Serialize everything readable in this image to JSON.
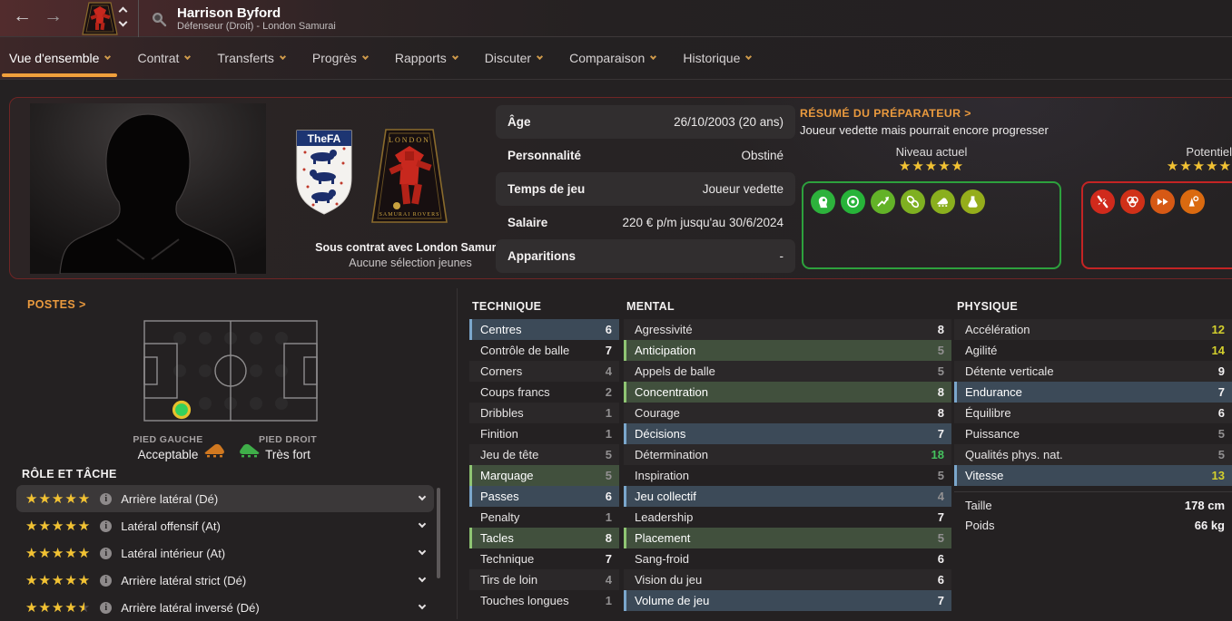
{
  "header": {
    "back_glyph": "←",
    "forward_glyph": "→",
    "player_name": "Harrison Byford",
    "player_role": "Défenseur (Droit) - London Samurai"
  },
  "nav": {
    "tabs": [
      "Vue d'ensemble",
      "Contrat",
      "Transferts",
      "Progrès",
      "Rapports",
      "Discuter",
      "Comparaison",
      "Historique"
    ],
    "active_tab": "Vue d'ensemble"
  },
  "overview": {
    "fa_badge_text": "TheFA",
    "club_badge_top": "LONDON",
    "club_badge_bottom": "SAMURAI ROVERS",
    "contract_bold": "Sous contrat avec London Samurai",
    "contract_sub": "Aucune sélection jeunes",
    "info": [
      {
        "label": "Âge",
        "value": "26/10/2003 (20 ans)"
      },
      {
        "label": "Personnalité",
        "value": "Obstiné"
      },
      {
        "label": "Temps de jeu",
        "value": "Joueur vedette"
      },
      {
        "label": "Salaire",
        "value": "220 € p/m jusqu'au 30/6/2024"
      },
      {
        "label": "Apparitions",
        "value": "-"
      }
    ],
    "scout": {
      "title": "RÉSUMÉ DU PRÉPARATEUR >",
      "summary": "Joueur vedette mais pourrait encore progresser",
      "current_label": "Niveau actuel",
      "current_stars": 5,
      "potential_label": "Potentiel",
      "potential_stars": 5,
      "strengths_box_color": "#2da13d",
      "weaknesses_box_color": "#c42424",
      "strengths": [
        {
          "name": "head-icon",
          "color": "#2db23c"
        },
        {
          "name": "target-icon",
          "color": "#27b339"
        },
        {
          "name": "growth-arrow-icon",
          "color": "#63b228"
        },
        {
          "name": "chain-icon",
          "color": "#7fb021"
        },
        {
          "name": "boot-icon",
          "color": "#8aaf1e"
        },
        {
          "name": "flask-icon",
          "color": "#95ad1b"
        }
      ],
      "weaknesses": [
        {
          "name": "injury-icon",
          "color": "#d02a1c"
        },
        {
          "name": "rings-icon",
          "color": "#d03018"
        },
        {
          "name": "double-arrow-icon",
          "color": "#d65915"
        },
        {
          "name": "cone-icon",
          "color": "#da6a10"
        }
      ]
    }
  },
  "positions": {
    "title": "POSTES >",
    "left_foot_label": "PIED GAUCHE",
    "left_foot_value": "Acceptable",
    "right_foot_label": "PIED DROIT",
    "right_foot_value": "Très fort",
    "highlight_color": "#35d15c"
  },
  "roles": {
    "title": "RÔLE ET TÂCHE",
    "info_glyph": "i",
    "items": [
      {
        "stars": 5,
        "label": "Arrière latéral (Dé)",
        "selected": true
      },
      {
        "stars": 5,
        "label": "Latéral offensif (At)",
        "selected": false
      },
      {
        "stars": 5,
        "label": "Latéral intérieur (At)",
        "selected": false
      },
      {
        "stars": 5,
        "label": "Arrière latéral strict (Dé)",
        "selected": false
      },
      {
        "stars": 4.5,
        "label": "Arrière latéral inversé (Dé)",
        "selected": false
      }
    ]
  },
  "attributes": {
    "technique": {
      "title": "TECHNIQUE",
      "rows": [
        {
          "label": "Centres",
          "value": 6
        },
        {
          "label": "Contrôle de balle",
          "value": 7
        },
        {
          "label": "Corners",
          "value": 4
        },
        {
          "label": "Coups francs",
          "value": 2
        },
        {
          "label": "Dribbles",
          "value": 1
        },
        {
          "label": "Finition",
          "value": 1
        },
        {
          "label": "Jeu de tête",
          "value": 5
        },
        {
          "label": "Marquage",
          "value": 5
        },
        {
          "label": "Passes",
          "value": 6
        },
        {
          "label": "Penalty",
          "value": 1
        },
        {
          "label": "Tacles",
          "value": 8
        },
        {
          "label": "Technique",
          "value": 7
        },
        {
          "label": "Tirs de loin",
          "value": 4
        },
        {
          "label": "Touches longues",
          "value": 1
        }
      ]
    },
    "mental": {
      "title": "MENTAL",
      "rows": [
        {
          "label": "Agressivité",
          "value": 8
        },
        {
          "label": "Anticipation",
          "value": 5
        },
        {
          "label": "Appels de balle",
          "value": 5
        },
        {
          "label": "Concentration",
          "value": 8
        },
        {
          "label": "Courage",
          "value": 8
        },
        {
          "label": "Décisions",
          "value": 7
        },
        {
          "label": "Détermination",
          "value": 18
        },
        {
          "label": "Inspiration",
          "value": 5
        },
        {
          "label": "Jeu collectif",
          "value": 4
        },
        {
          "label": "Leadership",
          "value": 7
        },
        {
          "label": "Placement",
          "value": 5
        },
        {
          "label": "Sang-froid",
          "value": 6
        },
        {
          "label": "Vision du jeu",
          "value": 6
        },
        {
          "label": "Volume de jeu",
          "value": 7
        }
      ]
    },
    "physique": {
      "title": "PHYSIQUE",
      "rows": [
        {
          "label": "Accélération",
          "value": 12
        },
        {
          "label": "Agilité",
          "value": 14
        },
        {
          "label": "Détente verticale",
          "value": 9
        },
        {
          "label": "Endurance",
          "value": 7
        },
        {
          "label": "Équilibre",
          "value": 6
        },
        {
          "label": "Puissance",
          "value": 5
        },
        {
          "label": "Qualités phys. nat.",
          "value": 5
        },
        {
          "label": "Vitesse",
          "value": 13
        }
      ]
    },
    "extra": [
      {
        "label": "Taille",
        "value": "178 cm"
      },
      {
        "label": "Poids",
        "value": "66 kg"
      }
    ],
    "value_colors": {
      "low": "#929091",
      "mid": "#f3f1f2",
      "good": "#d3cf2d",
      "top": "#45c25e"
    }
  }
}
